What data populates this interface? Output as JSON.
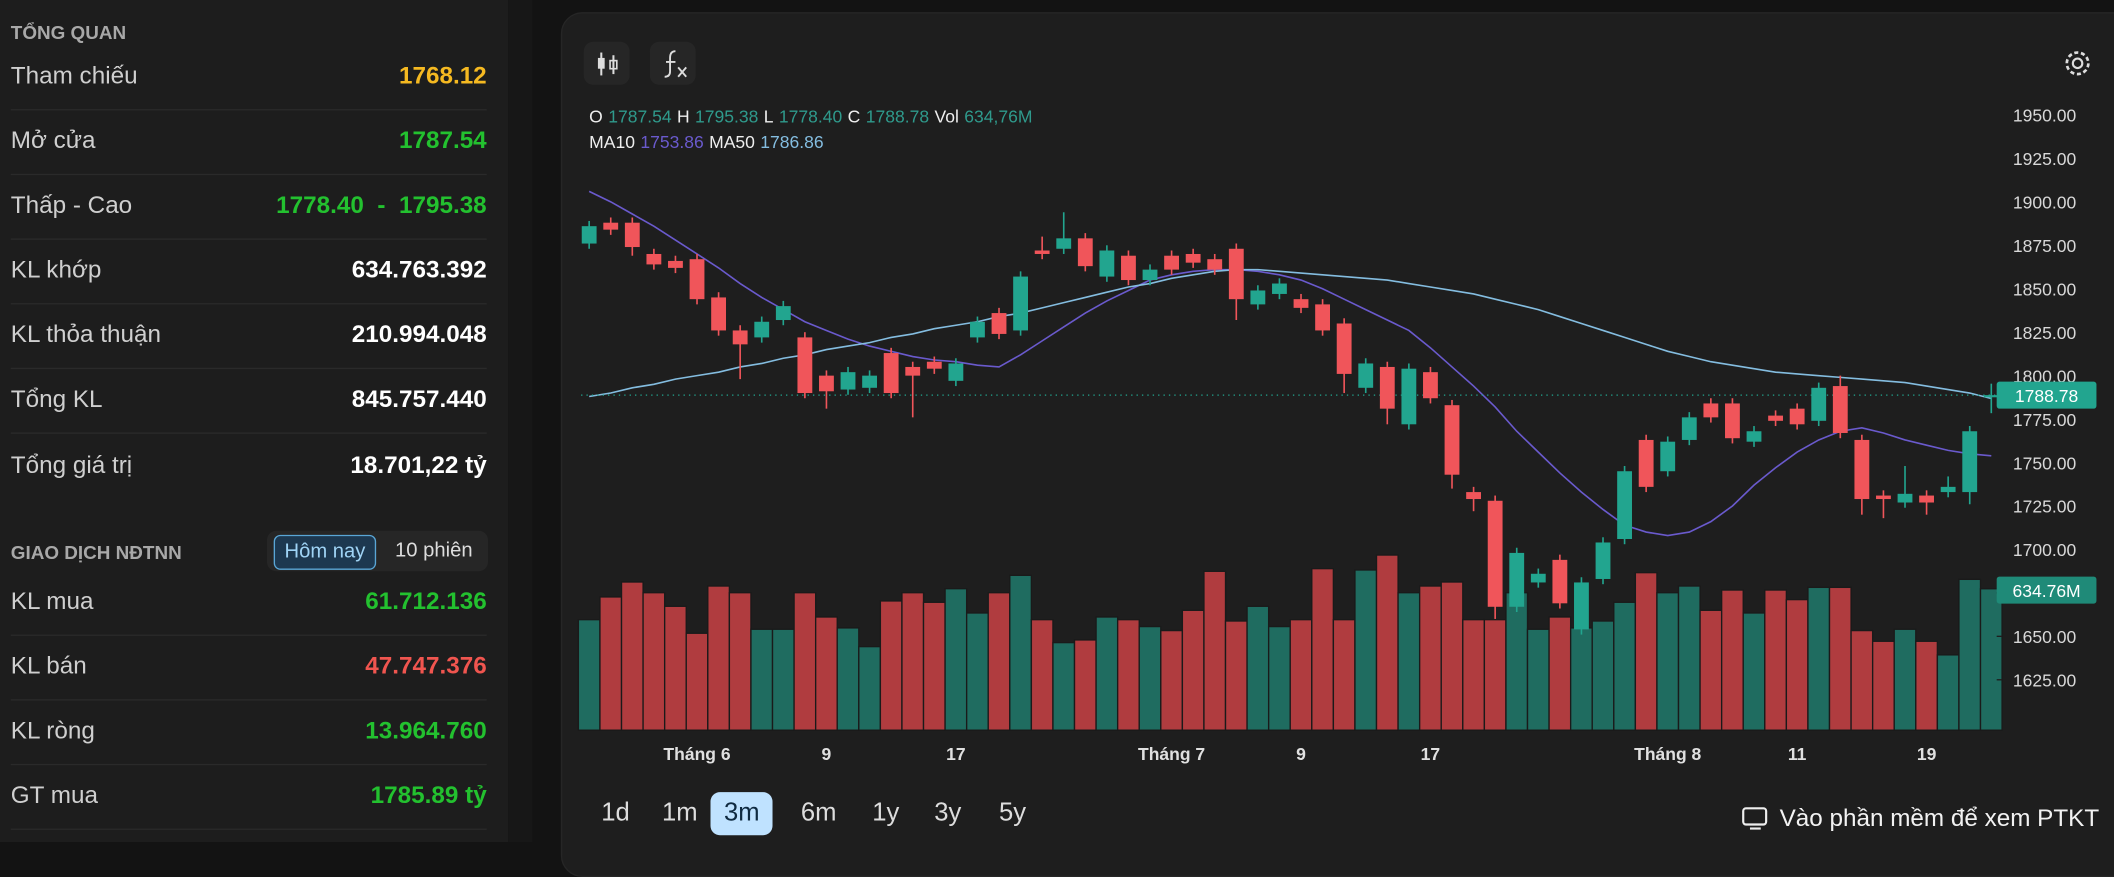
{
  "overview": {
    "title": "TỔNG QUAN",
    "rows": [
      {
        "label": "Tham chiếu",
        "value": "1768.12"
      },
      {
        "label": "Mở cửa",
        "value": "1787.54"
      },
      {
        "label": "Thấp - Cao",
        "low": "1778.40",
        "sep": "-",
        "high": "1795.38"
      },
      {
        "label": "KL khớp",
        "value": "634.763.392"
      },
      {
        "label": "KL thỏa thuận",
        "value": "210.994.048"
      },
      {
        "label": "Tổng KL",
        "value": "845.757.440"
      },
      {
        "label": "Tổng giá trị",
        "value": "18.701,22 tỷ"
      }
    ]
  },
  "foreign": {
    "title": "GIAO DỊCH NĐTNN",
    "tabs": [
      "Hôm nay",
      "10 phiên"
    ],
    "rows": [
      {
        "label": "KL mua",
        "value": "61.712.136"
      },
      {
        "label": "KL bán",
        "value": "47.747.376"
      },
      {
        "label": "KL ròng",
        "value": "13.964.760"
      },
      {
        "label": "GT mua",
        "value": "1785.89 tỷ"
      }
    ]
  },
  "chart_data": {
    "type": "candlestick",
    "legend": [
      {
        "label": "O",
        "value": "1787.54"
      },
      {
        "label": "H",
        "value": "1795.38"
      },
      {
        "label": "L",
        "value": "1778.40"
      },
      {
        "label": "C",
        "value": "1788.78"
      },
      {
        "label": "Vol",
        "value": "634,76M"
      }
    ],
    "up_color": "#22a58f",
    "down_color": "#f0555a",
    "open": [
      1876,
      1888,
      1888,
      1870,
      1866,
      1867,
      1845,
      1826,
      1822,
      1832,
      1822,
      1800,
      1792,
      1793,
      1813,
      1805,
      1808,
      1797,
      1822,
      1836,
      1826,
      1872,
      1873,
      1879,
      1857,
      1869,
      1855,
      1869,
      1870,
      1867,
      1873,
      1841,
      1847,
      1844,
      1841,
      1830,
      1793,
      1805,
      1772,
      1802,
      1783,
      1733,
      1728,
      1667,
      1681,
      1694,
      1654,
      1683,
      1706,
      1763,
      1745,
      1763,
      1784,
      1784,
      1762,
      1777,
      1781,
      1774,
      1794,
      1763,
      1731,
      1727,
      1731,
      1733,
      1733,
      1787.54
    ],
    "high": [
      1889,
      1891,
      1891,
      1873,
      1869,
      1870,
      1848,
      1829,
      1834,
      1843,
      1825,
      1803,
      1805,
      1803,
      1816,
      1808,
      1811,
      1810,
      1834,
      1839,
      1860,
      1880,
      1894,
      1882,
      1875,
      1872,
      1864,
      1872,
      1873,
      1870,
      1876,
      1852,
      1856,
      1847,
      1844,
      1833,
      1810,
      1808,
      1807,
      1805,
      1786,
      1736,
      1731,
      1701,
      1689,
      1697,
      1684,
      1707,
      1748,
      1766,
      1765,
      1779,
      1787,
      1787,
      1771,
      1780,
      1784,
      1796,
      1800,
      1766,
      1734,
      1748,
      1734,
      1742,
      1771,
      1795.38
    ],
    "low": [
      1873,
      1881,
      1869,
      1861,
      1859,
      1841,
      1823,
      1798,
      1819,
      1829,
      1787,
      1781,
      1789,
      1790,
      1787,
      1776,
      1801,
      1794,
      1819,
      1821,
      1823,
      1867,
      1870,
      1860,
      1854,
      1852,
      1852,
      1858,
      1862,
      1858,
      1832,
      1838,
      1844,
      1836,
      1823,
      1790,
      1790,
      1772,
      1769,
      1784,
      1735,
      1722,
      1660,
      1664,
      1678,
      1666,
      1651,
      1680,
      1703,
      1733,
      1742,
      1760,
      1773,
      1761,
      1759,
      1771,
      1769,
      1771,
      1764,
      1720,
      1718,
      1724,
      1720,
      1730,
      1726,
      1778.4
    ],
    "close": [
      1886,
      1884,
      1874,
      1864,
      1862,
      1844,
      1826,
      1818,
      1831,
      1840,
      1790,
      1791,
      1802,
      1800,
      1790,
      1800,
      1804,
      1807,
      1831,
      1824,
      1857,
      1870,
      1879,
      1863,
      1872,
      1855,
      1861,
      1861,
      1865,
      1861,
      1844,
      1849,
      1853,
      1839,
      1826,
      1801,
      1807,
      1781,
      1804,
      1787,
      1743,
      1729,
      1667,
      1698,
      1686,
      1669,
      1681,
      1704,
      1745,
      1736,
      1762,
      1776,
      1776,
      1764,
      1768,
      1774,
      1772,
      1793,
      1767,
      1729,
      1729,
      1732,
      1727,
      1736,
      1768,
      1788.78
    ],
    "volume": [
      496,
      598,
      665,
      617,
      556,
      435,
      647,
      617,
      453,
      453,
      617,
      508,
      459,
      375,
      580,
      617,
      574,
      635,
      526,
      617,
      695,
      496,
      393,
      405,
      508,
      496,
      465,
      447,
      538,
      713,
      490,
      556,
      465,
      496,
      725,
      496,
      719,
      786,
      617,
      647,
      665,
      496,
      496,
      617,
      453,
      508,
      459,
      490,
      574,
      707,
      617,
      647,
      538,
      629,
      526,
      629,
      586,
      641,
      641,
      447,
      399,
      453,
      399,
      338,
      677,
      634.76
    ],
    "series": [
      {
        "name": "MA10",
        "color": "#6a5acd",
        "legend_value": "1753.86",
        "values": [
          1906,
          1900,
          1893,
          1886,
          1878,
          1870,
          1862,
          1853,
          1845,
          1838,
          1831,
          1826,
          1821,
          1817,
          1814,
          1811,
          1809,
          1808,
          1806,
          1805,
          1812,
          1820,
          1828,
          1836,
          1843,
          1849,
          1855,
          1858,
          1860,
          1861,
          1861,
          1860,
          1858,
          1855,
          1850,
          1844,
          1838,
          1832,
          1826,
          1816,
          1805,
          1794,
          1782,
          1768,
          1756,
          1744,
          1733,
          1723,
          1714,
          1710,
          1708,
          1710,
          1716,
          1725,
          1737,
          1747,
          1756,
          1763,
          1768,
          1770,
          1767,
          1763,
          1760,
          1757,
          1755,
          1753.86
        ]
      },
      {
        "name": "MA50",
        "color": "#84bde0",
        "legend_value": "1786.86",
        "values": [
          1788,
          1790,
          1793,
          1795,
          1798,
          1800,
          1802,
          1805,
          1807,
          1810,
          1812,
          1815,
          1817,
          1819,
          1822,
          1824,
          1827,
          1829,
          1831,
          1834,
          1836,
          1839,
          1842,
          1845,
          1848,
          1851,
          1853,
          1856,
          1858,
          1860,
          1861,
          1861,
          1860,
          1859,
          1858,
          1857,
          1856,
          1855,
          1853,
          1851,
          1849,
          1847,
          1844,
          1841,
          1838,
          1834,
          1830,
          1826,
          1822,
          1818,
          1814,
          1811,
          1808,
          1806,
          1804,
          1802,
          1801,
          1800,
          1799,
          1798,
          1797,
          1796,
          1794,
          1792,
          1790,
          1786.86
        ]
      }
    ],
    "ylim": [
      1596,
      1958
    ],
    "yticks": [
      {
        "value": 1625,
        "label": "1625.00"
      },
      {
        "value": 1650,
        "label": "1650.00"
      },
      {
        "value": 1675,
        "label": "1675.00"
      },
      {
        "value": 1700,
        "label": "1700.00"
      },
      {
        "value": 1725,
        "label": "1725.00"
      },
      {
        "value": 1750,
        "label": "1750.00"
      },
      {
        "value": 1775,
        "label": "1775.00"
      },
      {
        "value": 1800,
        "label": "1800.00"
      },
      {
        "value": 1825,
        "label": "1825.00"
      },
      {
        "value": 1850,
        "label": "1850.00"
      },
      {
        "value": 1875,
        "label": "1875.00"
      },
      {
        "value": 1900,
        "label": "1900.00"
      },
      {
        "value": 1925,
        "label": "1925.00"
      },
      {
        "value": 1950,
        "label": "1950.00"
      }
    ],
    "xtick_labels": [
      {
        "index": 5,
        "label": "Tháng 6"
      },
      {
        "index": 11,
        "label": "9"
      },
      {
        "index": 17,
        "label": "17"
      },
      {
        "index": 27,
        "label": "Tháng 7"
      },
      {
        "index": 33,
        "label": "9"
      },
      {
        "index": 39,
        "label": "17"
      },
      {
        "index": 50,
        "label": "Tháng 8"
      },
      {
        "index": 56,
        "label": "11"
      },
      {
        "index": 62,
        "label": "19"
      }
    ],
    "price_tag": "1788.78",
    "volume_tag": "634.76M",
    "grid": false
  },
  "ranges": [
    "1d",
    "1m",
    "3m",
    "6m",
    "1y",
    "3y",
    "5y"
  ],
  "active_range": "3m",
  "footer_link": "Vào phần mềm để xem PTKT"
}
